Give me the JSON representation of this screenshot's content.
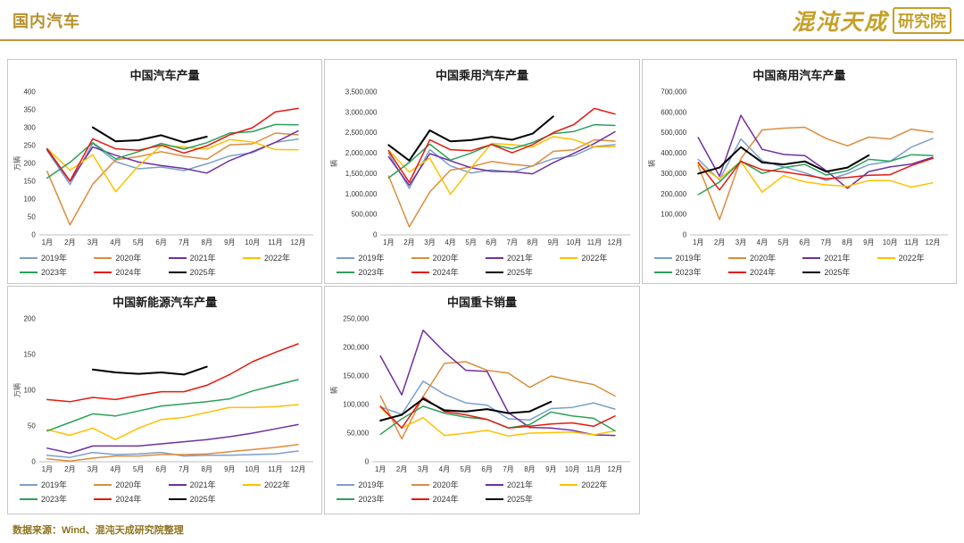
{
  "page": {
    "title": "国内汽车",
    "logo_text_1": "混沌天成",
    "logo_text_2": "研究院",
    "footer": "数据来源：Wind、混沌天成研究院整理",
    "brand_color": "#B8912C"
  },
  "months": [
    "1月",
    "2月",
    "3月",
    "4月",
    "5月",
    "6月",
    "7月",
    "8月",
    "9月",
    "10月",
    "11月",
    "12月"
  ],
  "legend_years": [
    {
      "label": "2019年",
      "color": "#7B9FCC"
    },
    {
      "label": "2020年",
      "color": "#DD8C3C"
    },
    {
      "label": "2021年",
      "color": "#7030A0"
    },
    {
      "label": "2022年",
      "color": "#FFC000"
    },
    {
      "label": "2023年",
      "color": "#2AA05A"
    },
    {
      "label": "2024年",
      "color": "#E4190F"
    },
    {
      "label": "2025年",
      "color": "#000000"
    }
  ],
  "chart_data": [
    {
      "type": "line",
      "title": "中国汽车产量",
      "xlabel": "",
      "ylabel": "万辆",
      "ylim": [
        0,
        400
      ],
      "ytick_step": 50,
      "grid": false,
      "legend_position": "bottom",
      "series": [
        {
          "name": "2019年",
          "values": [
            236,
            141,
            256,
            205,
            185,
            190,
            180,
            199,
            221,
            230,
            259,
            268
          ]
        },
        {
          "name": "2020年",
          "values": [
            178,
            28,
            142,
            210,
            219,
            233,
            220,
            212,
            252,
            255,
            285,
            280
          ]
        },
        {
          "name": "2021年",
          "values": [
            239,
            150,
            246,
            223,
            204,
            194,
            186,
            173,
            208,
            233,
            259,
            291
          ]
        },
        {
          "name": "2022年",
          "values": [
            242,
            181,
            224,
            121,
            193,
            250,
            246,
            240,
            267,
            260,
            239,
            238
          ]
        },
        {
          "name": "2023年",
          "values": [
            159,
            203,
            258,
            213,
            233,
            256,
            240,
            258,
            285,
            289,
            309,
            308
          ]
        },
        {
          "name": "2024年",
          "values": [
            241,
            151,
            269,
            241,
            237,
            251,
            229,
            249,
            280,
            300,
            344,
            354
          ]
        },
        {
          "name": "2025年",
          "values": [
            null,
            null,
            301,
            262,
            265,
            279,
            259,
            275,
            null,
            null,
            null,
            null
          ]
        }
      ]
    },
    {
      "type": "line",
      "title": "中国乘用汽车产量",
      "xlabel": "",
      "ylabel": "辆",
      "ylim": [
        0,
        3500000
      ],
      "ytick_step": 500000,
      "grid": false,
      "legend_position": "bottom",
      "series": [
        {
          "name": "2019年",
          "values": [
            1995000,
            1140000,
            2090000,
            1689000,
            1515000,
            1591000,
            1533000,
            1691000,
            1865000,
            1935000,
            2163000,
            2210000
          ]
        },
        {
          "name": "2020年",
          "values": [
            1444000,
            196000,
            1049000,
            1587000,
            1664000,
            1798000,
            1729000,
            1683000,
            2045000,
            2082000,
            2329000,
            2297000
          ]
        },
        {
          "name": "2021年",
          "values": [
            1911000,
            1216000,
            1991000,
            1815000,
            1646000,
            1555000,
            1548000,
            1497000,
            1767000,
            1997000,
            2238000,
            2527000
          ]
        },
        {
          "name": "2022年",
          "values": [
            2077000,
            1539000,
            1881000,
            996000,
            1636000,
            2239000,
            2210000,
            2157000,
            2406000,
            2333000,
            2152000,
            2161000
          ]
        },
        {
          "name": "2023年",
          "values": [
            1397000,
            1774000,
            2222000,
            1832000,
            2003000,
            2216000,
            2108000,
            2261000,
            2480000,
            2530000,
            2700000,
            2680000
          ]
        },
        {
          "name": "2024年",
          "values": [
            2055000,
            1286000,
            2327000,
            2087000,
            2063000,
            2214000,
            2011000,
            2211000,
            2504000,
            2701000,
            3097000,
            2960000
          ]
        },
        {
          "name": "2025年",
          "values": [
            2200000,
            1820000,
            2560000,
            2290000,
            2320000,
            2400000,
            2330000,
            2480000,
            2900000,
            null,
            null,
            null
          ]
        }
      ]
    },
    {
      "type": "line",
      "title": "中国商用汽车产量",
      "xlabel": "",
      "ylabel": "辆",
      "ylim": [
        0,
        700000
      ],
      "ytick_step": 100000,
      "grid": false,
      "legend_position": "bottom",
      "series": [
        {
          "name": "2019年",
          "values": [
            370000,
            270000,
            470000,
            363000,
            333000,
            304000,
            267000,
            300000,
            344000,
            360000,
            430000,
            473000
          ]
        },
        {
          "name": "2020年",
          "values": [
            339000,
            75000,
            373000,
            514000,
            523000,
            527000,
            472000,
            436000,
            479000,
            470000,
            518000,
            503000
          ]
        },
        {
          "name": "2021年",
          "values": [
            477000,
            287000,
            586000,
            419000,
            394000,
            388000,
            315000,
            228000,
            310000,
            333000,
            347000,
            380000
          ]
        },
        {
          "name": "2022年",
          "values": [
            345000,
            274000,
            360000,
            209000,
            290000,
            260000,
            245000,
            238000,
            266000,
            266000,
            234000,
            255000
          ]
        },
        {
          "name": "2023年",
          "values": [
            197000,
            259000,
            362000,
            301000,
            330000,
            345000,
            293000,
            314000,
            370000,
            361000,
            393000,
            389000
          ]
        },
        {
          "name": "2024年",
          "values": [
            355000,
            220000,
            360000,
            319000,
            309000,
            293000,
            275000,
            281000,
            292000,
            295000,
            340000,
            375000
          ]
        },
        {
          "name": "2025年",
          "values": [
            300000,
            330000,
            430000,
            355000,
            345000,
            360000,
            310000,
            330000,
            390000,
            null,
            null,
            null
          ]
        }
      ]
    },
    {
      "type": "line",
      "title": "中国新能源汽车产量",
      "xlabel": "",
      "ylabel": "万辆",
      "ylim": [
        0,
        200
      ],
      "ytick_step": 50,
      "grid": false,
      "legend_position": "bottom",
      "series": [
        {
          "name": "2019年",
          "values": [
            9,
            6,
            13,
            10,
            11,
            13,
            8,
            9,
            9,
            10,
            11,
            15
          ]
        },
        {
          "name": "2020年",
          "values": [
            4,
            1,
            5,
            8,
            8,
            10,
            10,
            11,
            14,
            17,
            20,
            24
          ]
        },
        {
          "name": "2021年",
          "values": [
            19,
            12,
            22,
            22,
            22,
            25,
            28,
            31,
            35,
            40,
            46,
            52
          ]
        },
        {
          "name": "2022年",
          "values": [
            45,
            37,
            47,
            31,
            47,
            59,
            62,
            69,
            76,
            76,
            77,
            80
          ]
        },
        {
          "name": "2023年",
          "values": [
            43,
            55,
            67,
            64,
            71,
            78,
            81,
            84,
            88,
            99,
            107,
            115
          ]
        },
        {
          "name": "2024年",
          "values": [
            87,
            84,
            90,
            87,
            93,
            98,
            98,
            107,
            122,
            140,
            153,
            165
          ]
        },
        {
          "name": "2025年",
          "values": [
            null,
            null,
            129,
            125,
            123,
            125,
            122,
            133,
            null,
            null,
            null,
            null
          ]
        }
      ]
    },
    {
      "type": "line",
      "title": "中国重卡销量",
      "xlabel": "",
      "ylabel": "辆",
      "ylim": [
        0,
        250000
      ],
      "ytick_step": 50000,
      "grid": false,
      "legend_position": "bottom",
      "series": [
        {
          "name": "2019年",
          "values": [
            96000,
            83000,
            141000,
            118000,
            103000,
            99000,
            75000,
            73000,
            93000,
            95000,
            103000,
            92000
          ]
        },
        {
          "name": "2020年",
          "values": [
            115000,
            40000,
            114000,
            172000,
            175000,
            160000,
            155000,
            130000,
            150000,
            142000,
            135000,
            115000
          ]
        },
        {
          "name": "2021年",
          "values": [
            185000,
            117000,
            230000,
            192000,
            160000,
            158000,
            86000,
            60000,
            59000,
            55000,
            47000,
            46000
          ]
        },
        {
          "name": "2022年",
          "values": [
            95000,
            59000,
            77000,
            46000,
            50000,
            55000,
            45000,
            50000,
            51000,
            52000,
            47000,
            54000
          ]
        },
        {
          "name": "2023年",
          "values": [
            48000,
            75000,
            97000,
            85000,
            78000,
            74000,
            59000,
            65000,
            87000,
            80000,
            76000,
            54000
          ]
        },
        {
          "name": "2024年",
          "values": [
            97000,
            59000,
            113000,
            88000,
            82000,
            74000,
            59000,
            62000,
            66000,
            68000,
            62000,
            80000
          ]
        },
        {
          "name": "2025年",
          "values": [
            72000,
            82000,
            110000,
            90000,
            88000,
            92000,
            85000,
            88000,
            105000,
            null,
            null,
            null
          ]
        }
      ]
    }
  ]
}
